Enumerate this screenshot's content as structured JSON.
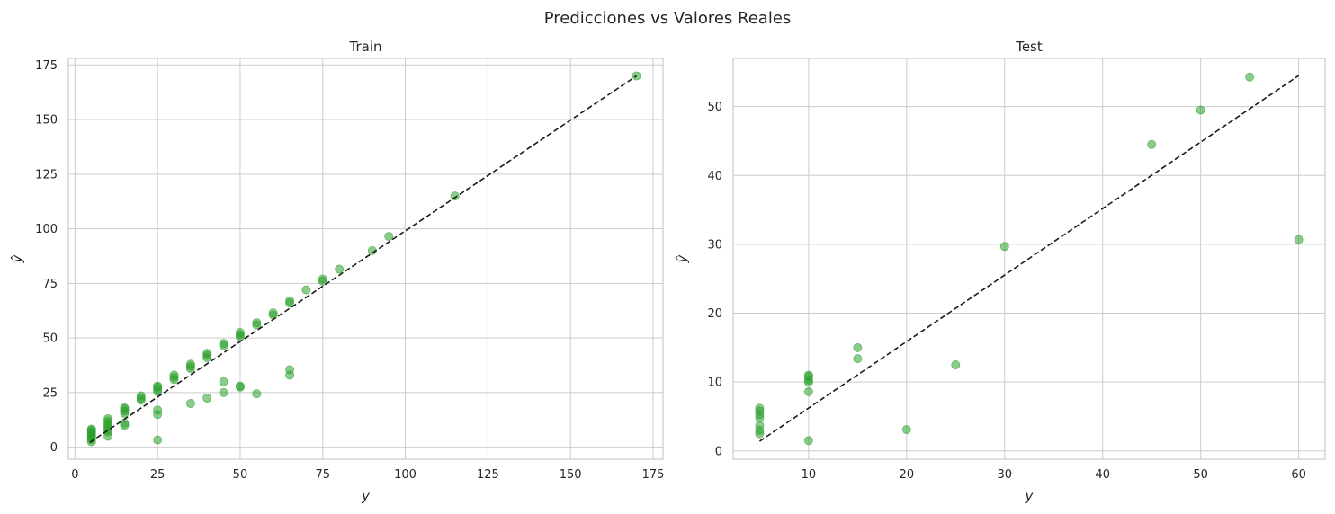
{
  "figure_title": "Predicciones vs Valores Reales",
  "chart_data": [
    {
      "type": "scatter",
      "title": "Train",
      "xlabel": "y",
      "ylabel": "ŷ",
      "xlim": [
        -2,
        178
      ],
      "ylim": [
        -5.5,
        178
      ],
      "xticks": [
        0,
        25,
        50,
        75,
        100,
        125,
        150,
        175
      ],
      "yticks": [
        0,
        25,
        50,
        75,
        100,
        125,
        150,
        175
      ],
      "grid": true,
      "point_color": "#2ca02c",
      "line": {
        "style": "dashed",
        "color": "#1a1a1a",
        "x": [
          4.5,
          170
        ],
        "y": [
          2.2,
          170
        ]
      },
      "points": [
        [
          5,
          2.5
        ],
        [
          5,
          3.5
        ],
        [
          5,
          4.2
        ],
        [
          5,
          5
        ],
        [
          5,
          5.8
        ],
        [
          5,
          6.5
        ],
        [
          5,
          7.2
        ],
        [
          5,
          7.8
        ],
        [
          5,
          8.3
        ],
        [
          10,
          5
        ],
        [
          10,
          7
        ],
        [
          10,
          8
        ],
        [
          10,
          9
        ],
        [
          10,
          10
        ],
        [
          10,
          11
        ],
        [
          10,
          12
        ],
        [
          10,
          13
        ],
        [
          15,
          10
        ],
        [
          15,
          11
        ],
        [
          15,
          15.5
        ],
        [
          15,
          16.5
        ],
        [
          15,
          17.5
        ],
        [
          15,
          18
        ],
        [
          20,
          21.5
        ],
        [
          20,
          22.5
        ],
        [
          20,
          23.5
        ],
        [
          25,
          3.3
        ],
        [
          25,
          15
        ],
        [
          25,
          17
        ],
        [
          25,
          25.5
        ],
        [
          25,
          26.5
        ],
        [
          25,
          27.5
        ],
        [
          25,
          28
        ],
        [
          30,
          31
        ],
        [
          30,
          32
        ],
        [
          30,
          33
        ],
        [
          35,
          20
        ],
        [
          35,
          36
        ],
        [
          35,
          37
        ],
        [
          35,
          38
        ],
        [
          40,
          22.5
        ],
        [
          40,
          41
        ],
        [
          40,
          42
        ],
        [
          40,
          43
        ],
        [
          45,
          25
        ],
        [
          45,
          30
        ],
        [
          45,
          46.5
        ],
        [
          45,
          47.5
        ],
        [
          50,
          27.5
        ],
        [
          50,
          28
        ],
        [
          50,
          50.5
        ],
        [
          50,
          51.5
        ],
        [
          50,
          52.5
        ],
        [
          55,
          24.5
        ],
        [
          55,
          56
        ],
        [
          55,
          57
        ],
        [
          60,
          60.5
        ],
        [
          60,
          61.5
        ],
        [
          65,
          33
        ],
        [
          65,
          35.5
        ],
        [
          65,
          66
        ],
        [
          65,
          67
        ],
        [
          70,
          72
        ],
        [
          75,
          76
        ],
        [
          75,
          77
        ],
        [
          80,
          81.5
        ],
        [
          90,
          90
        ],
        [
          95,
          96.5
        ],
        [
          115,
          115
        ],
        [
          170,
          170
        ]
      ]
    },
    {
      "type": "scatter",
      "title": "Test",
      "xlabel": "y",
      "ylabel": "ŷ",
      "xlim": [
        2.3,
        62.7
      ],
      "ylim": [
        -1.2,
        57
      ],
      "xticks": [
        10,
        20,
        30,
        40,
        50,
        60
      ],
      "yticks": [
        0,
        10,
        20,
        30,
        40,
        50
      ],
      "grid": true,
      "point_color": "#2ca02c",
      "line": {
        "style": "dashed",
        "color": "#1a1a1a",
        "x": [
          5,
          60
        ],
        "y": [
          1.4,
          54.5
        ]
      },
      "points": [
        [
          5,
          2.5
        ],
        [
          5,
          3
        ],
        [
          5,
          3.7
        ],
        [
          5,
          4.8
        ],
        [
          5,
          5.3
        ],
        [
          5,
          5.8
        ],
        [
          5,
          6.2
        ],
        [
          10,
          1.5
        ],
        [
          10,
          8.6
        ],
        [
          10,
          10
        ],
        [
          10,
          10.3
        ],
        [
          10,
          10.8
        ],
        [
          10,
          11
        ],
        [
          15,
          13.4
        ],
        [
          15,
          15
        ],
        [
          20,
          3.1
        ],
        [
          25,
          12.5
        ],
        [
          30,
          29.7
        ],
        [
          45,
          44.5
        ],
        [
          50,
          49.5
        ],
        [
          55,
          54.3
        ],
        [
          60,
          30.7
        ]
      ]
    }
  ]
}
